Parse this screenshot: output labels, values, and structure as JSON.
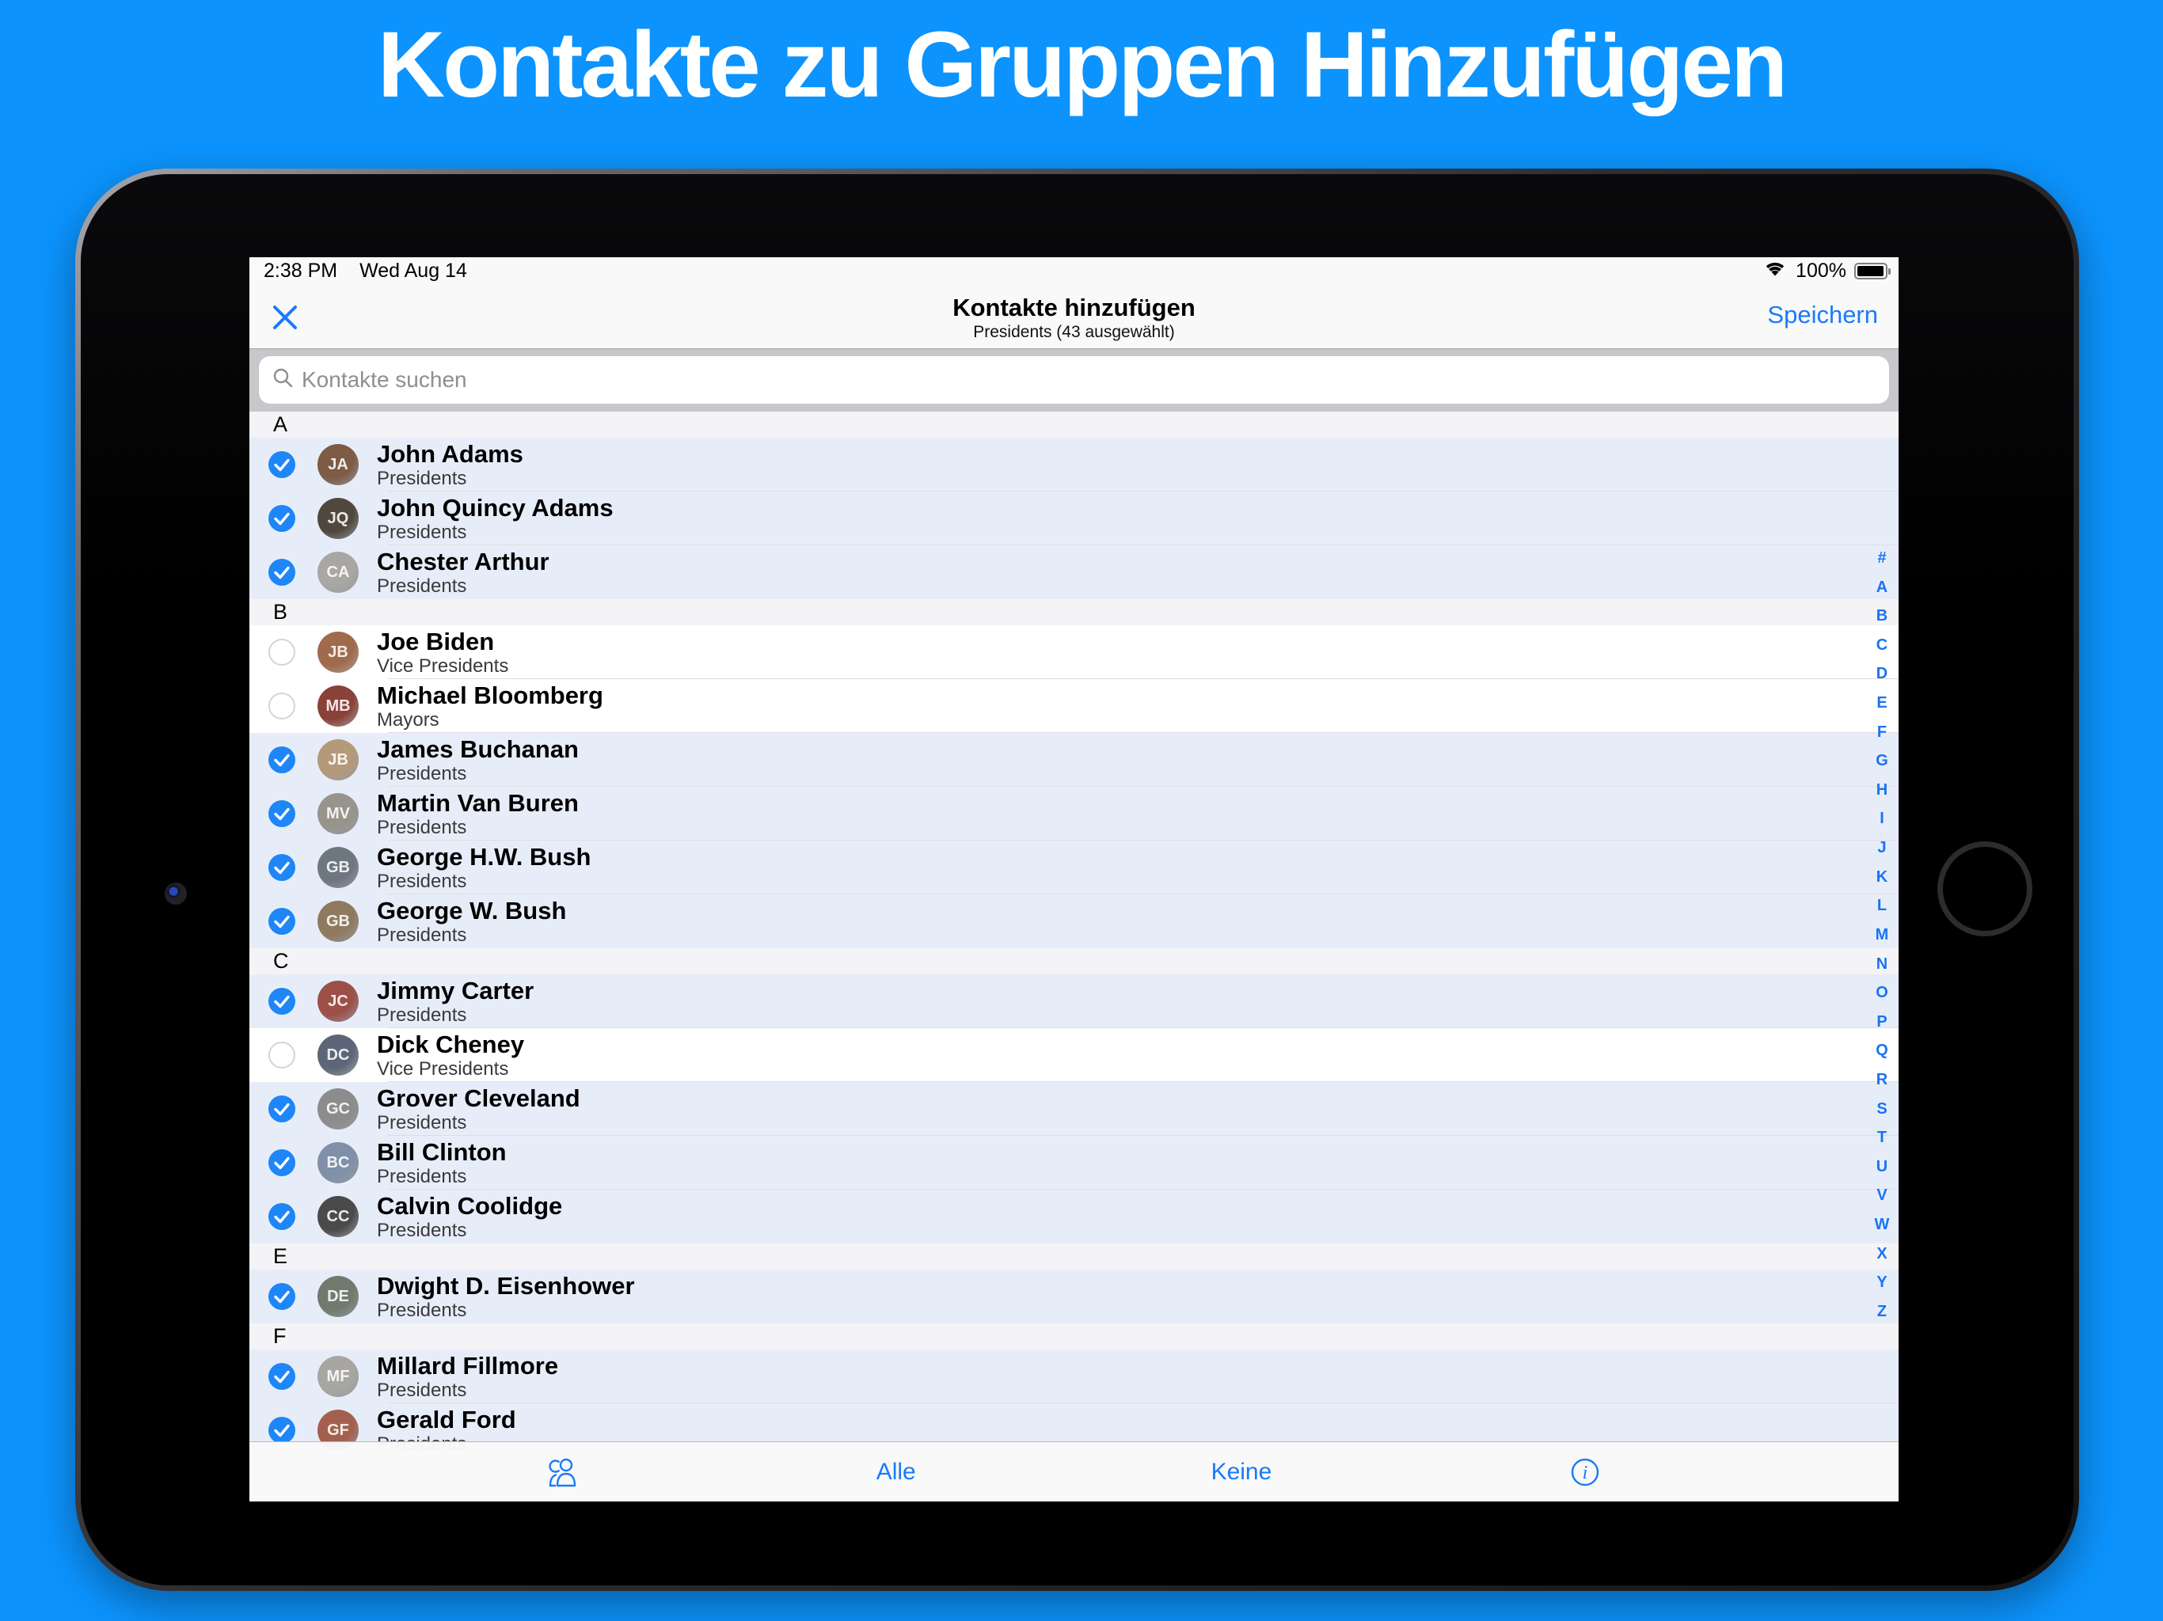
{
  "page": {
    "headline": "Kontakte zu Gruppen Hinzufügen",
    "background_color": "#0c93fd"
  },
  "device": {
    "status_bar": {
      "time": "2:38 PM",
      "date": "Wed Aug 14",
      "battery_percent": "100%",
      "wifi_icon": "wifi-icon",
      "battery_icon": "battery-full-icon"
    }
  },
  "nav": {
    "close_icon": "close-x-icon",
    "title": "Kontakte hinzufügen",
    "subtitle": "Presidents (43 ausgewählt)",
    "save_label": "Speichern"
  },
  "search": {
    "icon": "magnifier-icon",
    "placeholder": "Kontakte suchen",
    "value": ""
  },
  "list": {
    "sections": [
      {
        "letter": "A",
        "contacts": [
          {
            "name": "John Adams",
            "group": "Presidents",
            "selected": true,
            "initials": "JA",
            "avatar_color": "#7d5b44"
          },
          {
            "name": "John Quincy Adams",
            "group": "Presidents",
            "selected": true,
            "initials": "JQ",
            "avatar_color": "#50483e"
          },
          {
            "name": "Chester Arthur",
            "group": "Presidents",
            "selected": true,
            "initials": "CA",
            "avatar_color": "#a9a7a3"
          }
        ]
      },
      {
        "letter": "B",
        "contacts": [
          {
            "name": "Joe Biden",
            "group": "Vice Presidents",
            "selected": false,
            "initials": "JB",
            "avatar_color": "#a06a4c"
          },
          {
            "name": "Michael Bloomberg",
            "group": "Mayors",
            "selected": false,
            "initials": "MB",
            "avatar_color": "#8a4238"
          },
          {
            "name": "James Buchanan",
            "group": "Presidents",
            "selected": true,
            "initials": "JB",
            "avatar_color": "#b49a7a"
          },
          {
            "name": "Martin Van Buren",
            "group": "Presidents",
            "selected": true,
            "initials": "MV",
            "avatar_color": "#98948c"
          },
          {
            "name": "George H.W. Bush",
            "group": "Presidents",
            "selected": true,
            "initials": "GB",
            "avatar_color": "#6e7680"
          },
          {
            "name": "George W. Bush",
            "group": "Presidents",
            "selected": true,
            "initials": "GB",
            "avatar_color": "#8f7a5f"
          }
        ]
      },
      {
        "letter": "C",
        "contacts": [
          {
            "name": "Jimmy Carter",
            "group": "Presidents",
            "selected": true,
            "initials": "JC",
            "avatar_color": "#9c5048"
          },
          {
            "name": "Dick Cheney",
            "group": "Vice Presidents",
            "selected": false,
            "initials": "DC",
            "avatar_color": "#5c6678"
          },
          {
            "name": "Grover Cleveland",
            "group": "Presidents",
            "selected": true,
            "initials": "GC",
            "avatar_color": "#8c8c8c"
          },
          {
            "name": "Bill Clinton",
            "group": "Presidents",
            "selected": true,
            "initials": "BC",
            "avatar_color": "#8090a8"
          },
          {
            "name": "Calvin Coolidge",
            "group": "Presidents",
            "selected": true,
            "initials": "CC",
            "avatar_color": "#4a4a4a"
          }
        ]
      },
      {
        "letter": "E",
        "contacts": [
          {
            "name": "Dwight D. Eisenhower",
            "group": "Presidents",
            "selected": true,
            "initials": "DE",
            "avatar_color": "#707a6e"
          }
        ]
      },
      {
        "letter": "F",
        "contacts": [
          {
            "name": "Millard Fillmore",
            "group": "Presidents",
            "selected": true,
            "initials": "MF",
            "avatar_color": "#a8a6a2"
          },
          {
            "name": "Gerald Ford",
            "group": "Presidents",
            "selected": true,
            "initials": "GF",
            "avatar_color": "#a4604e"
          }
        ]
      }
    ]
  },
  "index_bar": {
    "letters": [
      "#",
      "A",
      "B",
      "C",
      "D",
      "E",
      "F",
      "G",
      "H",
      "I",
      "J",
      "K",
      "L",
      "M",
      "N",
      "O",
      "P",
      "Q",
      "R",
      "S",
      "T",
      "U",
      "V",
      "W",
      "X",
      "Y",
      "Z"
    ]
  },
  "toolbar": {
    "groups_icon": "contacts-group-icon",
    "alle_label": "Alle",
    "keine_label": "Keine",
    "info_icon": "info-icon"
  },
  "colors": {
    "background_blue": "#0c93fd",
    "accent_blue": "#1a7af8",
    "checkbox_blue": "#1e86f7",
    "selected_row_bg": "#e7edf8",
    "section_header_bg": "#f4f4f6",
    "search_strip_gray": "#c7c7cc"
  }
}
